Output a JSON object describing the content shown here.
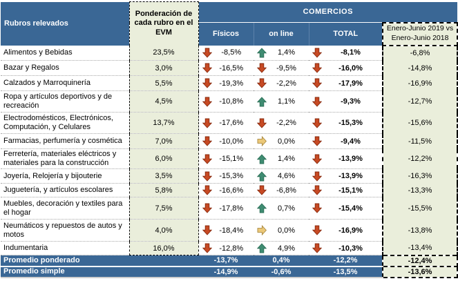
{
  "table": {
    "header": {
      "rubros_label": "Rubros relevados",
      "ponderacion_label": "Ponderación de cada rubro en el EVM",
      "comercios_label": "COMERCIOS",
      "col_fisicos": "Físicos",
      "col_online": "on line",
      "col_total": "TOTAL",
      "comparison_line1": "Enero-Junio 2019 vs",
      "comparison_line2": "Enero-Junio 2018"
    },
    "rows": [
      {
        "name": "Alimentos y Bebidas",
        "weight": "23,5%",
        "fisicos": "-8,5%",
        "fisicos_trend": "down",
        "online": "1,4%",
        "online_trend": "up",
        "total": "-8,1%",
        "total_trend": "down",
        "yoy": "-6,8%"
      },
      {
        "name": "Bazar y Regalos",
        "weight": "3,0%",
        "fisicos": "-16,5%",
        "fisicos_trend": "down",
        "online": "-9,5%",
        "online_trend": "down",
        "total": "-16,0%",
        "total_trend": "down",
        "yoy": "-14,8%"
      },
      {
        "name": "Calzados y Marroquinería",
        "weight": "5,5%",
        "fisicos": "-19,3%",
        "fisicos_trend": "down",
        "online": "-2,2%",
        "online_trend": "down",
        "total": "-17,9%",
        "total_trend": "down",
        "yoy": "-16,9%"
      },
      {
        "name": "Ropa y artículos deportivos y de recreación",
        "weight": "4,5%",
        "fisicos": "-10,8%",
        "fisicos_trend": "down",
        "online": "1,1%",
        "online_trend": "up",
        "total": "-9,3%",
        "total_trend": "down",
        "yoy": "-12,7%"
      },
      {
        "name": "Electrodomésticos, Electrónicos, Computación, y Celulares",
        "weight": "13,7%",
        "fisicos": "-17,6%",
        "fisicos_trend": "down",
        "online": "-2,2%",
        "online_trend": "down",
        "total": "-15,3%",
        "total_trend": "down",
        "yoy": "-15,6%"
      },
      {
        "name": "Farmacias, perfumería y cosmética",
        "weight": "7,0%",
        "fisicos": "-10,0%",
        "fisicos_trend": "down",
        "online": "0,0%",
        "online_trend": "flat",
        "total": "-9,4%",
        "total_trend": "down",
        "yoy": "-11,5%"
      },
      {
        "name": "Ferretería, materiales eléctricos y materiales para la construcción",
        "weight": "6,0%",
        "fisicos": "-15,1%",
        "fisicos_trend": "down",
        "online": "1,4%",
        "online_trend": "up",
        "total": "-13,9%",
        "total_trend": "down",
        "yoy": "-12,2%"
      },
      {
        "name": "Joyería, Relojería y bijouterie",
        "weight": "3,5%",
        "fisicos": "-15,3%",
        "fisicos_trend": "down",
        "online": "4,6%",
        "online_trend": "up",
        "total": "-13,9%",
        "total_trend": "down",
        "yoy": "-16,3%"
      },
      {
        "name": "Juguetería, y artículos escolares",
        "weight": "5,8%",
        "fisicos": "-16,6%",
        "fisicos_trend": "down",
        "online": "-6,8%",
        "online_trend": "down",
        "total": "-15,1%",
        "total_trend": "down",
        "yoy": "-13,3%"
      },
      {
        "name": "Muebles, decoración y textiles para el hogar",
        "weight": "7,5%",
        "fisicos": "-17,8%",
        "fisicos_trend": "down",
        "online": "0,7%",
        "online_trend": "up",
        "total": "-15,4%",
        "total_trend": "down",
        "yoy": "-15,5%"
      },
      {
        "name": "Neumáticos y repuestos de autos y motos",
        "weight": "4,0%",
        "fisicos": "-18,4%",
        "fisicos_trend": "down",
        "online": "0,0%",
        "online_trend": "flat",
        "total": "-16,9%",
        "total_trend": "down",
        "yoy": "-13,8%"
      },
      {
        "name": "Indumentaria",
        "weight": "16,0%",
        "fisicos": "-12,8%",
        "fisicos_trend": "down",
        "online": "4,9%",
        "online_trend": "up",
        "total": "-10,3%",
        "total_trend": "down",
        "yoy": "-13,4%"
      }
    ],
    "summary": [
      {
        "label": "Promedio ponderado",
        "fisicos": "-13,7%",
        "online": "0,4%",
        "total": "-12,2%",
        "yoy": "-12,4%"
      },
      {
        "label": "Promedio simple",
        "fisicos": "-14,9%",
        "online": "-0,6%",
        "total": "-13,5%",
        "yoy": "-13,6%"
      }
    ]
  },
  "colors": {
    "header_blue": "#3A6795",
    "panel_green": "#EAEEDB",
    "arrow_down_red": "#C74A24",
    "arrow_up_green": "#3F8C72",
    "arrow_flat_gold": "#EBC878"
  },
  "chart_data": {
    "type": "table",
    "title": "COMERCIOS",
    "units": "%",
    "columns": [
      "Rubros relevados",
      "Ponderación de cada rubro en el EVM",
      "Físicos",
      "on line",
      "TOTAL",
      "Enero-Junio 2019 vs Enero-Junio 2018"
    ],
    "rows": [
      [
        "Alimentos y Bebidas",
        23.5,
        -8.5,
        1.4,
        -8.1,
        -6.8
      ],
      [
        "Bazar y Regalos",
        3.0,
        -16.5,
        -9.5,
        -16.0,
        -14.8
      ],
      [
        "Calzados y Marroquinería",
        5.5,
        -19.3,
        -2.2,
        -17.9,
        -16.9
      ],
      [
        "Ropa y artículos deportivos y de recreación",
        4.5,
        -10.8,
        1.1,
        -9.3,
        -12.7
      ],
      [
        "Electrodomésticos, Electrónicos, Computación, y Celulares",
        13.7,
        -17.6,
        -2.2,
        -15.3,
        -15.6
      ],
      [
        "Farmacias, perfumería y cosmética",
        7.0,
        -10.0,
        0.0,
        -9.4,
        -11.5
      ],
      [
        "Ferretería, materiales eléctricos y materiales para la construcción",
        6.0,
        -15.1,
        1.4,
        -13.9,
        -12.2
      ],
      [
        "Joyería, Relojería y bijouterie",
        3.5,
        -15.3,
        4.6,
        -13.9,
        -16.3
      ],
      [
        "Juguetería, y artículos escolares",
        5.8,
        -16.6,
        -6.8,
        -15.1,
        -13.3
      ],
      [
        "Muebles, decoración y textiles para el hogar",
        7.5,
        -17.8,
        0.7,
        -15.4,
        -15.5
      ],
      [
        "Neumáticos y repuestos de autos y motos",
        4.0,
        -18.4,
        0.0,
        -16.9,
        -13.8
      ],
      [
        "Indumentaria",
        16.0,
        -12.8,
        4.9,
        -10.3,
        -13.4
      ]
    ],
    "summary_rows": [
      [
        "Promedio ponderado",
        null,
        -13.7,
        0.4,
        -12.2,
        -12.4
      ],
      [
        "Promedio simple",
        null,
        -14.9,
        -0.6,
        -13.5,
        -13.6
      ]
    ]
  }
}
